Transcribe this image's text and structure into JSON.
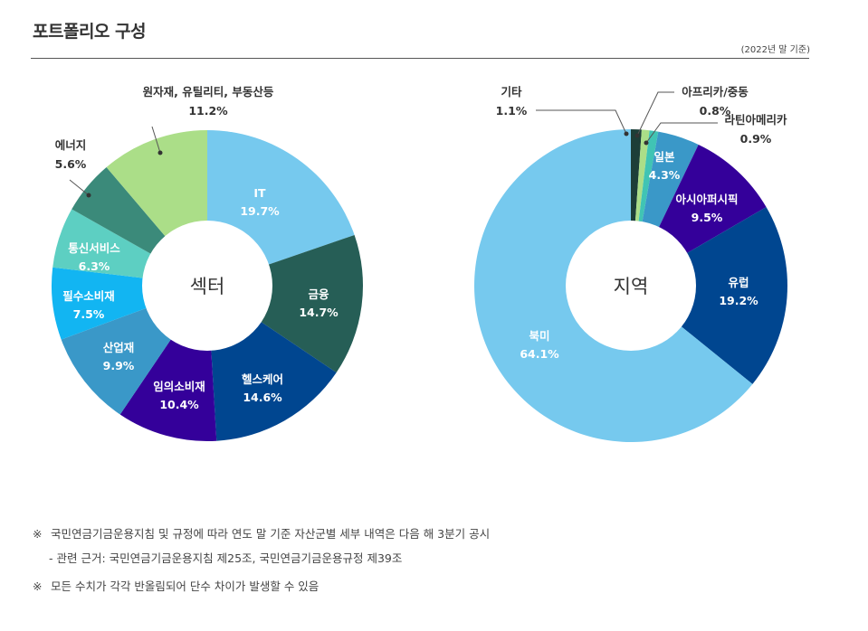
{
  "header": {
    "title": "포트폴리오 구성",
    "basis": "(2022년 말 기준)"
  },
  "colors": {
    "sky": "#76c9ee",
    "dark_teal": "#265e56",
    "navy": "#004690",
    "purple": "#34009a",
    "steel_blue": "#3a98c8",
    "cyan": "#12b5f2",
    "mint": "#5dcfc2",
    "green": "#3b8a7a",
    "lime": "#abde88",
    "black_green": "#1d3e38",
    "teal": "#40c4b4"
  },
  "chart_data": [
    {
      "type": "pie",
      "center_label": "섹터",
      "slices": [
        {
          "name": "IT",
          "value": 19.7,
          "label": "19.7%",
          "color": "#76c9ee"
        },
        {
          "name": "금융",
          "value": 14.7,
          "label": "14.7%",
          "color": "#265e56"
        },
        {
          "name": "헬스케어",
          "value": 14.6,
          "label": "14.6%",
          "color": "#004690"
        },
        {
          "name": "임의소비재",
          "value": 10.4,
          "label": "10.4%",
          "color": "#34009a"
        },
        {
          "name": "산업재",
          "value": 9.9,
          "label": "9.9%",
          "color": "#3a98c8"
        },
        {
          "name": "필수소비재",
          "value": 7.5,
          "label": "7.5%",
          "color": "#12b5f2"
        },
        {
          "name": "통신서비스",
          "value": 6.3,
          "label": "6.3%",
          "color": "#5dcfc2"
        },
        {
          "name": "에너지",
          "value": 5.6,
          "label": "5.6%",
          "color": "#3b8a7a"
        },
        {
          "name": "원자재, 유틸리티, 부동산등",
          "value": 11.2,
          "label": "11.2%",
          "color": "#abde88"
        }
      ]
    },
    {
      "type": "pie",
      "center_label": "지역",
      "slices": [
        {
          "name": "기타",
          "value": 1.1,
          "label": "1.1%",
          "color": "#1d3e38"
        },
        {
          "name": "아프리카/중동",
          "value": 0.8,
          "label": "0.8%",
          "color": "#abde88"
        },
        {
          "name": "라틴아메리카",
          "value": 0.9,
          "label": "0.9%",
          "color": "#40c4b4"
        },
        {
          "name": "일본",
          "value": 4.3,
          "label": "4.3%",
          "color": "#3a98c8"
        },
        {
          "name": "아시아퍼시픽",
          "value": 9.5,
          "label": "9.5%",
          "color": "#34009a"
        },
        {
          "name": "유럽",
          "value": 19.2,
          "label": "19.2%",
          "color": "#004690"
        },
        {
          "name": "북미",
          "value": 64.1,
          "label": "64.1%",
          "color": "#76c9ee"
        }
      ]
    }
  ],
  "notes": {
    "note1_mark": "※",
    "note1": "국민연금기금운용지침 및 규정에 따라 연도 말 기준 자산군별 세부 내역은 다음 해 3분기 공시",
    "note1_sub": "- 관련 근거: 국민연금기금운용지침 제25조, 국민연금기금운용규정 제39조",
    "note2_mark": "※",
    "note2": "모든 수치가 각각 반올림되어 단수 차이가 발생할 수 있음"
  }
}
